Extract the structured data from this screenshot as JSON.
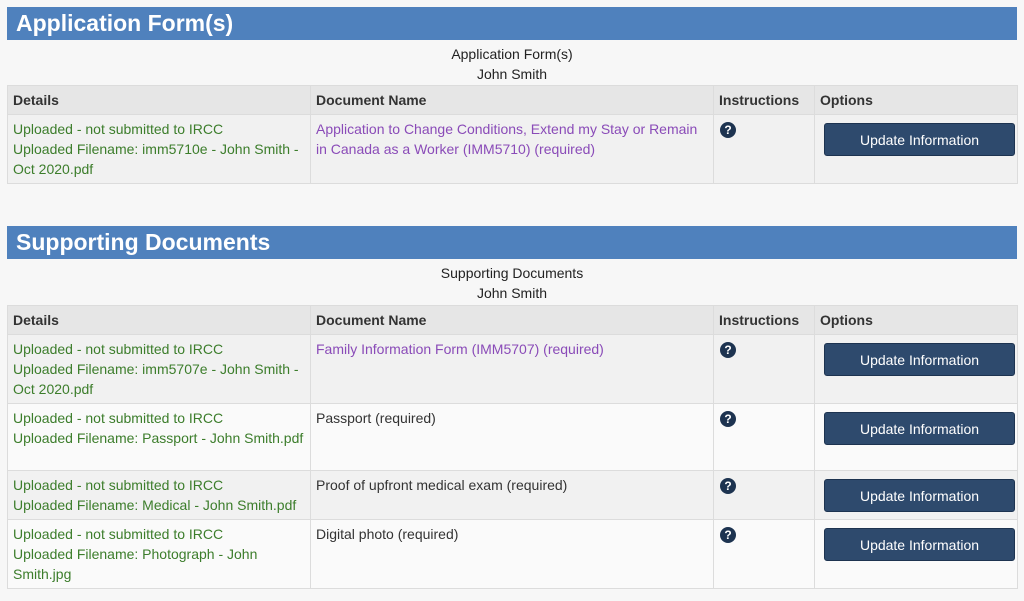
{
  "sections": [
    {
      "title": "Application Form(s)",
      "subtitle": "Application Form(s)",
      "name": "John Smith",
      "columns": [
        "Details",
        "Document Name",
        "Instructions",
        "Options"
      ],
      "rows": [
        {
          "status": "Uploaded - not submitted to IRCC",
          "filename": "Uploaded Filename:  imm5710e - John Smith - Oct 2020.pdf",
          "document": "Application to Change Conditions, Extend my Stay or Remain in Canada as a Worker (IMM5710)  (required)",
          "link": true,
          "button": "Update Information"
        }
      ]
    },
    {
      "title": "Supporting Documents",
      "subtitle": "Supporting Documents",
      "name": "John Smith",
      "columns": [
        "Details",
        "Document Name",
        "Instructions",
        "Options"
      ],
      "rows": [
        {
          "status": "Uploaded - not submitted to IRCC",
          "filename": "Uploaded Filename:  imm5707e - John Smith - Oct 2020.pdf",
          "document": "Family Information Form (IMM5707)  (required)",
          "link": true,
          "button": "Update Information"
        },
        {
          "status": "Uploaded - not submitted to IRCC",
          "filename": "Uploaded Filename:  Passport - John Smith.pdf",
          "document": "Passport  (required)",
          "link": false,
          "button": "Update Information"
        },
        {
          "status": "Uploaded - not submitted to IRCC",
          "filename": "Uploaded Filename:  Medical - John Smith.pdf",
          "document": "Proof of upfront medical exam  (required)",
          "link": false,
          "button": "Update Information"
        },
        {
          "status": "Uploaded - not submitted to IRCC",
          "filename": "Uploaded Filename:  Photograph - John Smith.jpg",
          "document": "Digital photo  (required)",
          "link": false,
          "button": "Update Information"
        }
      ]
    }
  ],
  "icons": {
    "instructions": "question-circle-icon"
  },
  "colors": {
    "section_bar": "#4f81bd",
    "button": "#2e4a6d",
    "details_text": "#3c7d2b",
    "link_text": "#8a4bb8"
  }
}
